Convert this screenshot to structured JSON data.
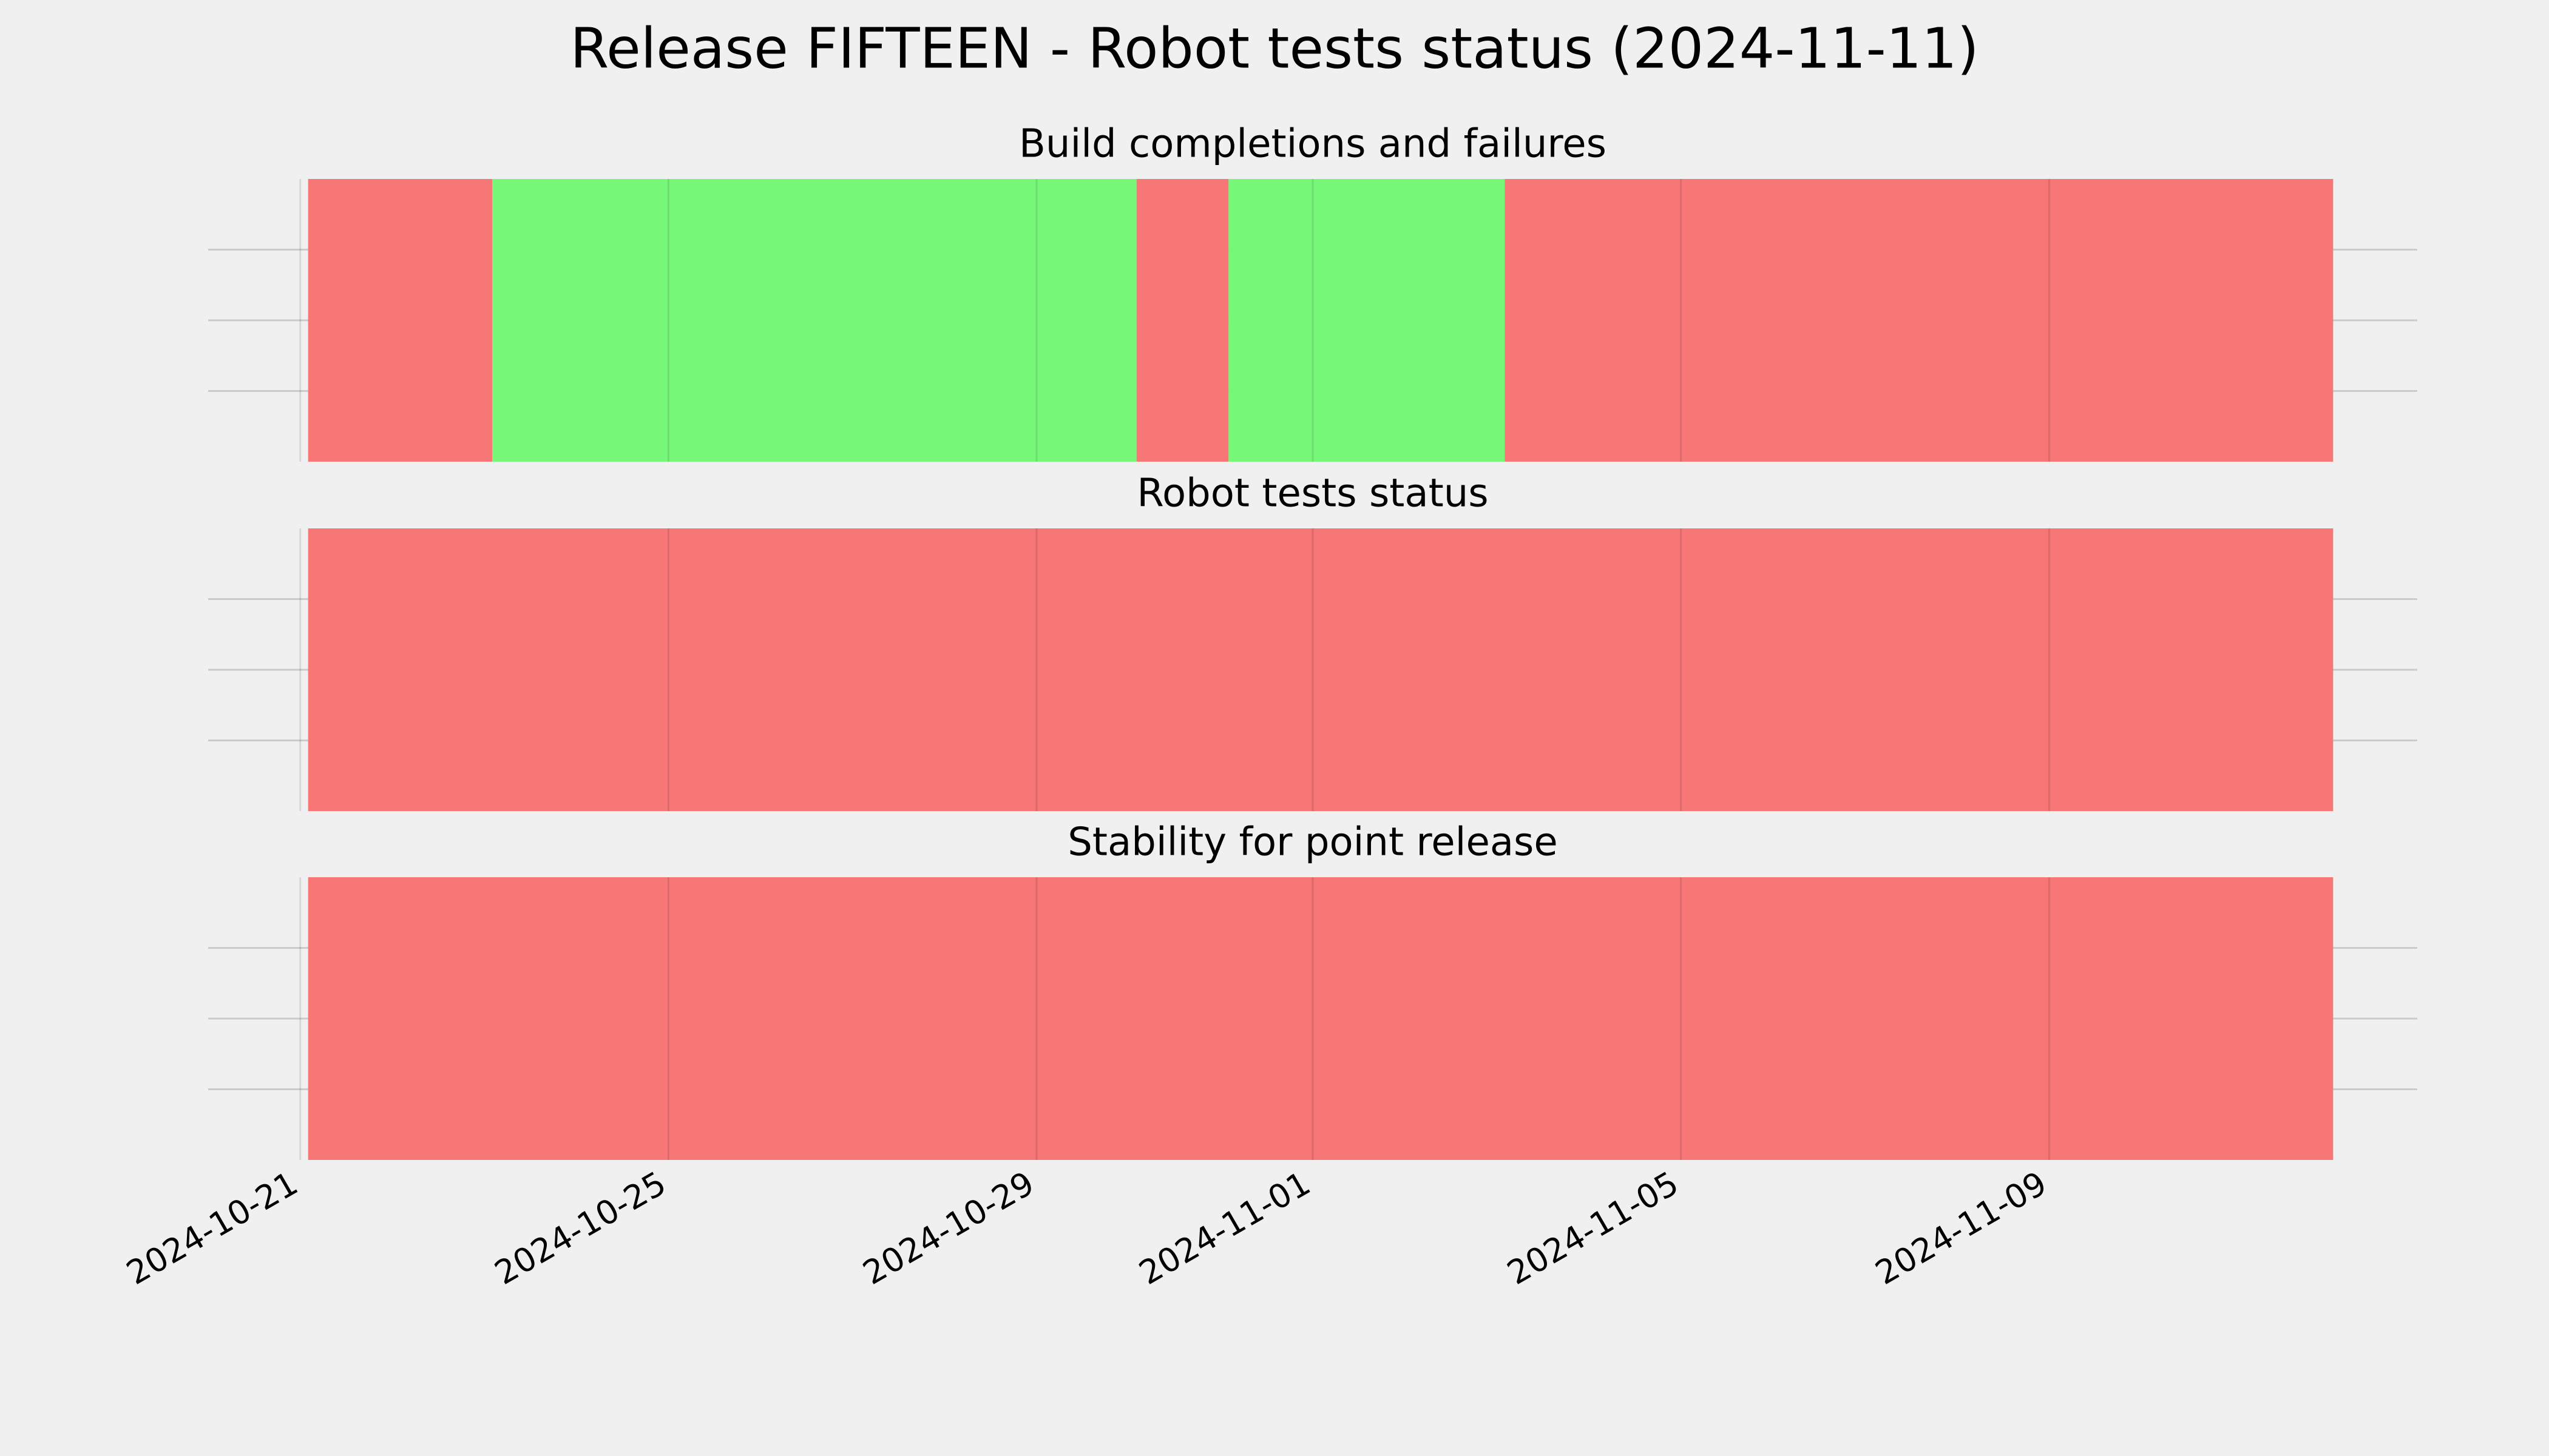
{
  "title": "Release FIFTEEN - Robot tests status (2024-11-11)",
  "chart_data": [
    {
      "type": "timeline",
      "title": "Build completions and failures",
      "segments": [
        {
          "start": "2024-10-21",
          "end": "2024-10-23",
          "color": "#f77777"
        },
        {
          "start": "2024-10-23",
          "end": "2024-10-30",
          "color": "#77f777"
        },
        {
          "start": "2024-10-30",
          "end": "2024-10-31",
          "color": "#f77777"
        },
        {
          "start": "2024-10-31",
          "end": "2024-11-03",
          "color": "#77f777"
        },
        {
          "start": "2024-11-03",
          "end": "2024-11-12",
          "color": "#f77777"
        }
      ],
      "xlim": [
        "2024-10-20",
        "2024-11-13"
      ],
      "xticks": [
        "2024-10-21",
        "2024-10-25",
        "2024-10-29",
        "2024-11-01",
        "2024-11-05",
        "2024-11-09"
      ],
      "ylim": [
        0,
        1
      ],
      "yticks": [
        0.25,
        0.5,
        0.75
      ],
      "grid": true
    },
    {
      "type": "timeline",
      "title": "Robot tests status",
      "segments": [
        {
          "start": "2024-10-21",
          "end": "2024-11-12",
          "color": "#f77777"
        }
      ],
      "xlim": [
        "2024-10-20",
        "2024-11-13"
      ],
      "xticks": [
        "2024-10-21",
        "2024-10-25",
        "2024-10-29",
        "2024-11-01",
        "2024-11-05",
        "2024-11-09"
      ],
      "ylim": [
        0,
        1
      ],
      "yticks": [
        0.25,
        0.5,
        0.75
      ],
      "grid": true
    },
    {
      "type": "timeline",
      "title": "Stability for point release",
      "segments": [
        {
          "start": "2024-10-21",
          "end": "2024-11-12",
          "color": "#f77777"
        }
      ],
      "xlim": [
        "2024-10-20",
        "2024-11-13"
      ],
      "xticks": [
        "2024-10-21",
        "2024-10-25",
        "2024-10-29",
        "2024-11-01",
        "2024-11-05",
        "2024-11-09"
      ],
      "ylim": [
        0,
        1
      ],
      "yticks": [
        0.25,
        0.5,
        0.75
      ],
      "grid": true,
      "show_xtick_labels": true
    }
  ]
}
